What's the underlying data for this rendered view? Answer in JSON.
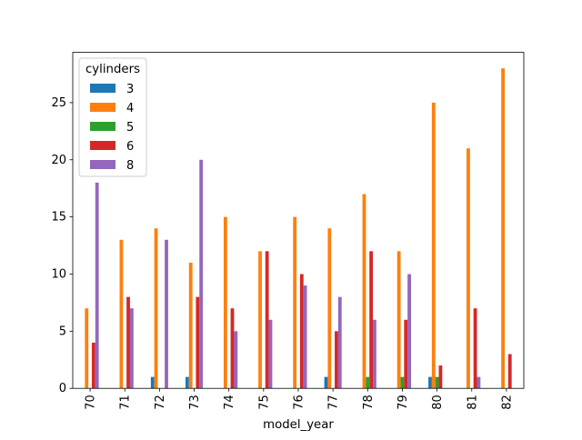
{
  "chart_data": {
    "type": "bar",
    "title": "",
    "xlabel": "model_year",
    "ylabel": "",
    "categories": [
      "70",
      "71",
      "72",
      "73",
      "74",
      "75",
      "76",
      "77",
      "78",
      "79",
      "80",
      "81",
      "82"
    ],
    "series": [
      {
        "name": "3",
        "color": "#1f77b4",
        "values": [
          0,
          0,
          1,
          1,
          0,
          0,
          0,
          1,
          0,
          0,
          1,
          0,
          0
        ]
      },
      {
        "name": "4",
        "color": "#ff7f0e",
        "values": [
          7,
          13,
          14,
          11,
          15,
          12,
          15,
          14,
          17,
          12,
          25,
          21,
          28
        ]
      },
      {
        "name": "5",
        "color": "#2ca02c",
        "values": [
          0,
          0,
          0,
          0,
          0,
          0,
          0,
          0,
          1,
          1,
          1,
          0,
          0
        ]
      },
      {
        "name": "6",
        "color": "#d62728",
        "values": [
          4,
          8,
          0,
          8,
          7,
          12,
          10,
          5,
          12,
          6,
          2,
          7,
          3
        ]
      },
      {
        "name": "8",
        "color": "#9467bd",
        "values": [
          18,
          7,
          13,
          20,
          5,
          6,
          9,
          8,
          6,
          10,
          0,
          1,
          0
        ]
      }
    ],
    "ylim": [
      0,
      29.4
    ],
    "yticks": [
      "0",
      "5",
      "10",
      "15",
      "20",
      "25"
    ],
    "legend": {
      "title": "cylinders",
      "placement": "top-left"
    },
    "grid": false
  }
}
